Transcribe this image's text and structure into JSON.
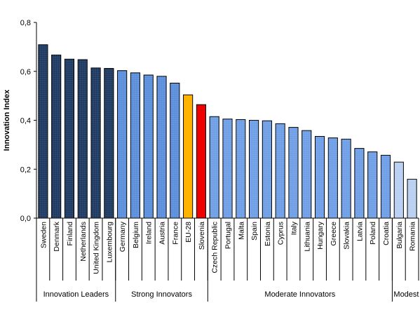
{
  "chart_data": {
    "type": "bar",
    "ylabel": "Innovation Index",
    "xlabel": "",
    "ylim": [
      0,
      0.8
    ],
    "yticks": [
      0,
      0.2,
      0.4,
      0.6,
      0.8
    ],
    "ytick_labels": [
      "0,0",
      "0,2",
      "0,4",
      "0,6",
      "0,8"
    ],
    "grid": false,
    "categories": [
      "Sweden",
      "Denmark",
      "Finland",
      "Netherlands",
      "United Kingdom",
      "Luxembourg",
      "Germany",
      "Belgium",
      "Ireland",
      "Austria",
      "France",
      "EU-28",
      "Slovenia",
      "Czech Republic",
      "Portugal",
      "Malta",
      "Spain",
      "Estonia",
      "Cyprus",
      "Italy",
      "Lithuania",
      "Hungary",
      "Greece",
      "Slovakia",
      "Latvia",
      "Poland",
      "Croatia",
      "Bulgaria",
      "Romania"
    ],
    "values": [
      0.709,
      0.667,
      0.65,
      0.648,
      0.614,
      0.612,
      0.603,
      0.594,
      0.585,
      0.58,
      0.552,
      0.504,
      0.464,
      0.415,
      0.405,
      0.403,
      0.4,
      0.398,
      0.386,
      0.371,
      0.358,
      0.334,
      0.328,
      0.323,
      0.285,
      0.271,
      0.257,
      0.229,
      0.159
    ],
    "groups": [
      {
        "name": "Innovation Leaders",
        "count": 6,
        "color": "#1f3b63"
      },
      {
        "name": "Strong Innovators",
        "count": 7,
        "color": "#5b8fdc"
      },
      {
        "name": "Moderate Innovators",
        "count": 14,
        "color": "#6f9fe6"
      },
      {
        "name": "Modest innov",
        "count": 2,
        "color": "#b9d0f2"
      }
    ],
    "highlight": {
      "EU-28": "#ffb300",
      "Slovenia": "#ee0000"
    }
  }
}
